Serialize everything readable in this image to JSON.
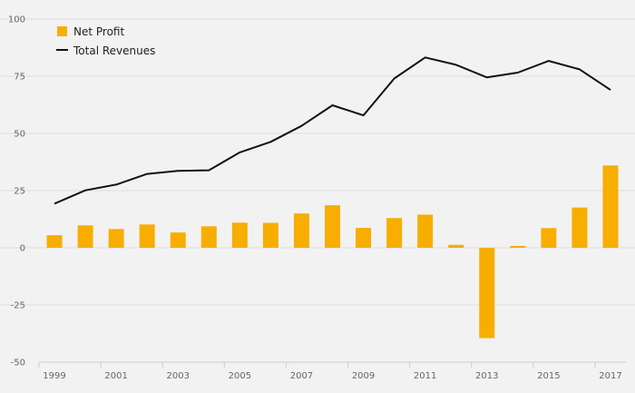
{
  "chart_data": {
    "type": "bar",
    "title": "",
    "xlabel": "",
    "ylabel": "",
    "ylim": [
      -50,
      100
    ],
    "yticks": [
      "100",
      "75",
      "50",
      "25",
      "0",
      "-25",
      "-50"
    ],
    "ytick_values": [
      100,
      75,
      50,
      25,
      0,
      -25,
      -50
    ],
    "categories": [
      "1999",
      "2000",
      "2001",
      "2002",
      "2003",
      "2004",
      "2005",
      "2006",
      "2007",
      "2008",
      "2009",
      "2010",
      "2011",
      "2012",
      "2013",
      "2014",
      "2015",
      "2016",
      "2017"
    ],
    "xtick_labels": [
      "1999",
      "2001",
      "2003",
      "2005",
      "2007",
      "2009",
      "2011",
      "2013",
      "2015",
      "2017"
    ],
    "grid": true,
    "legend_position": "top-left",
    "series": [
      {
        "name": "Net Profit",
        "type": "bar",
        "color": "#f7ae00",
        "values": [
          5.5,
          9.8,
          8.2,
          10.2,
          6.7,
          9.4,
          11.0,
          10.9,
          15.0,
          18.6,
          8.7,
          13.0,
          14.5,
          1.3,
          -39.5,
          0.8,
          8.6,
          17.6,
          36.0
        ]
      },
      {
        "name": "Total Revenues",
        "type": "line",
        "color": "#111111",
        "values": [
          19.3,
          25.1,
          27.6,
          32.3,
          33.6,
          33.9,
          41.7,
          46.3,
          53.3,
          62.3,
          57.9,
          74.0,
          83.2,
          80.0,
          74.5,
          76.6,
          81.7,
          78.0,
          69.0
        ]
      }
    ]
  }
}
